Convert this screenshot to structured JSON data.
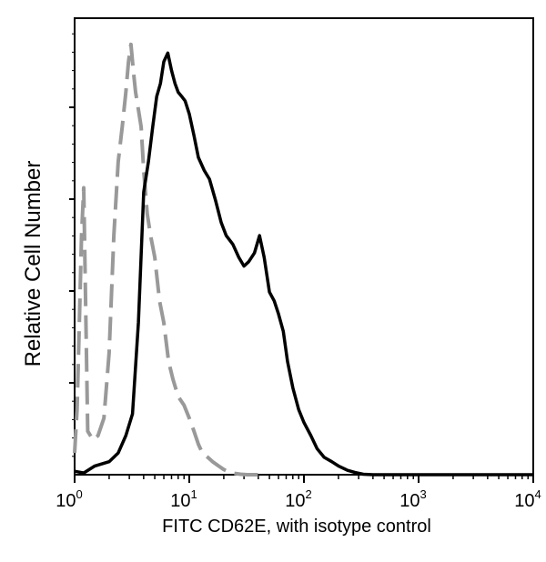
{
  "chart_data": {
    "type": "line",
    "title": "",
    "xlabel": "FITC  CD62E,  with isotype control",
    "ylabel": "Relative Cell Number",
    "x_scale": "log",
    "xlim": [
      1,
      10000
    ],
    "ylim": [
      0,
      1
    ],
    "grid": false,
    "x_ticks": [
      {
        "value": 1,
        "base": "10",
        "exp": "0"
      },
      {
        "value": 10,
        "base": "10",
        "exp": "1"
      },
      {
        "value": 100,
        "base": "10",
        "exp": "2"
      },
      {
        "value": 1000,
        "base": "10",
        "exp": "3"
      },
      {
        "value": 10000,
        "base": "10",
        "exp": "4"
      }
    ],
    "series": [
      {
        "style": "dashed",
        "color": "#999999",
        "x": [
          1,
          1.05,
          1.1,
          1.15,
          1.2,
          1.3,
          1.45,
          1.6,
          1.8,
          2.0,
          2.2,
          2.4,
          2.6,
          2.8,
          2.95,
          3.1,
          3.25,
          3.4,
          3.6,
          3.8,
          4.0,
          4.3,
          4.6,
          5.0,
          5.5,
          6.0,
          6.6,
          7.2,
          8.0,
          9.0,
          10,
          11,
          12,
          13,
          14.5,
          16,
          18,
          20,
          22,
          25,
          28,
          32,
          36,
          40
        ],
        "y": [
          0.05,
          0.15,
          0.35,
          0.55,
          0.66,
          0.1,
          0.08,
          0.09,
          0.13,
          0.28,
          0.55,
          0.72,
          0.8,
          0.88,
          0.95,
          0.99,
          0.93,
          0.88,
          0.84,
          0.8,
          0.7,
          0.6,
          0.55,
          0.5,
          0.4,
          0.35,
          0.26,
          0.22,
          0.18,
          0.16,
          0.13,
          0.1,
          0.07,
          0.05,
          0.04,
          0.03,
          0.02,
          0.012,
          0.006,
          0.003,
          0.001,
          0,
          0,
          0
        ]
      },
      {
        "style": "solid",
        "color": "#000000",
        "x": [
          1,
          1.2,
          1.5,
          2.0,
          2.4,
          2.8,
          3.2,
          3.6,
          4.0,
          4.4,
          4.8,
          5.2,
          5.6,
          6.0,
          6.5,
          7.0,
          7.5,
          8.0,
          8.6,
          9.2,
          10,
          11,
          12,
          13.5,
          15,
          17,
          19,
          21,
          24,
          27,
          30,
          33,
          37,
          41,
          45,
          50,
          55,
          60,
          66,
          72,
          80,
          90,
          100,
          115,
          130,
          150,
          175,
          200,
          240,
          280,
          330,
          400,
          500,
          700,
          1000,
          2000,
          5000,
          10000
        ],
        "y": [
          0.008,
          0.004,
          0.02,
          0.03,
          0.05,
          0.09,
          0.14,
          0.35,
          0.65,
          0.72,
          0.8,
          0.87,
          0.9,
          0.95,
          0.97,
          0.93,
          0.9,
          0.88,
          0.87,
          0.86,
          0.83,
          0.78,
          0.73,
          0.7,
          0.68,
          0.63,
          0.58,
          0.55,
          0.53,
          0.5,
          0.48,
          0.49,
          0.51,
          0.55,
          0.5,
          0.42,
          0.4,
          0.37,
          0.33,
          0.26,
          0.2,
          0.15,
          0.12,
          0.09,
          0.06,
          0.04,
          0.03,
          0.02,
          0.01,
          0.005,
          0.001,
          0,
          0,
          0,
          0,
          0,
          0,
          0
        ]
      }
    ]
  }
}
